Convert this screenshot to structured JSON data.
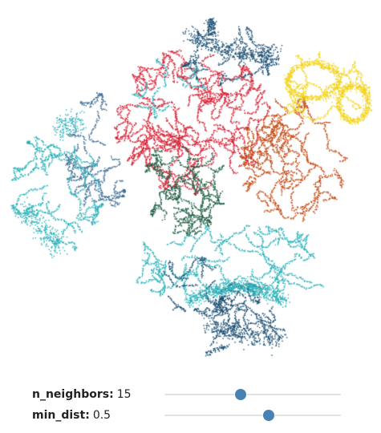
{
  "plot": {
    "cluster_colors": [
      "#1b4f72",
      "#2ab0b8",
      "#d62034",
      "#f2d31b",
      "#c44a14",
      "#3f6e94",
      "#1f5e45"
    ]
  },
  "controls": {
    "n_neighbors": {
      "label": "n_neighbors:",
      "value": "15",
      "fraction": 0.43
    },
    "min_dist": {
      "label": "min_dist:",
      "value": "0.5",
      "fraction": 0.59
    }
  }
}
